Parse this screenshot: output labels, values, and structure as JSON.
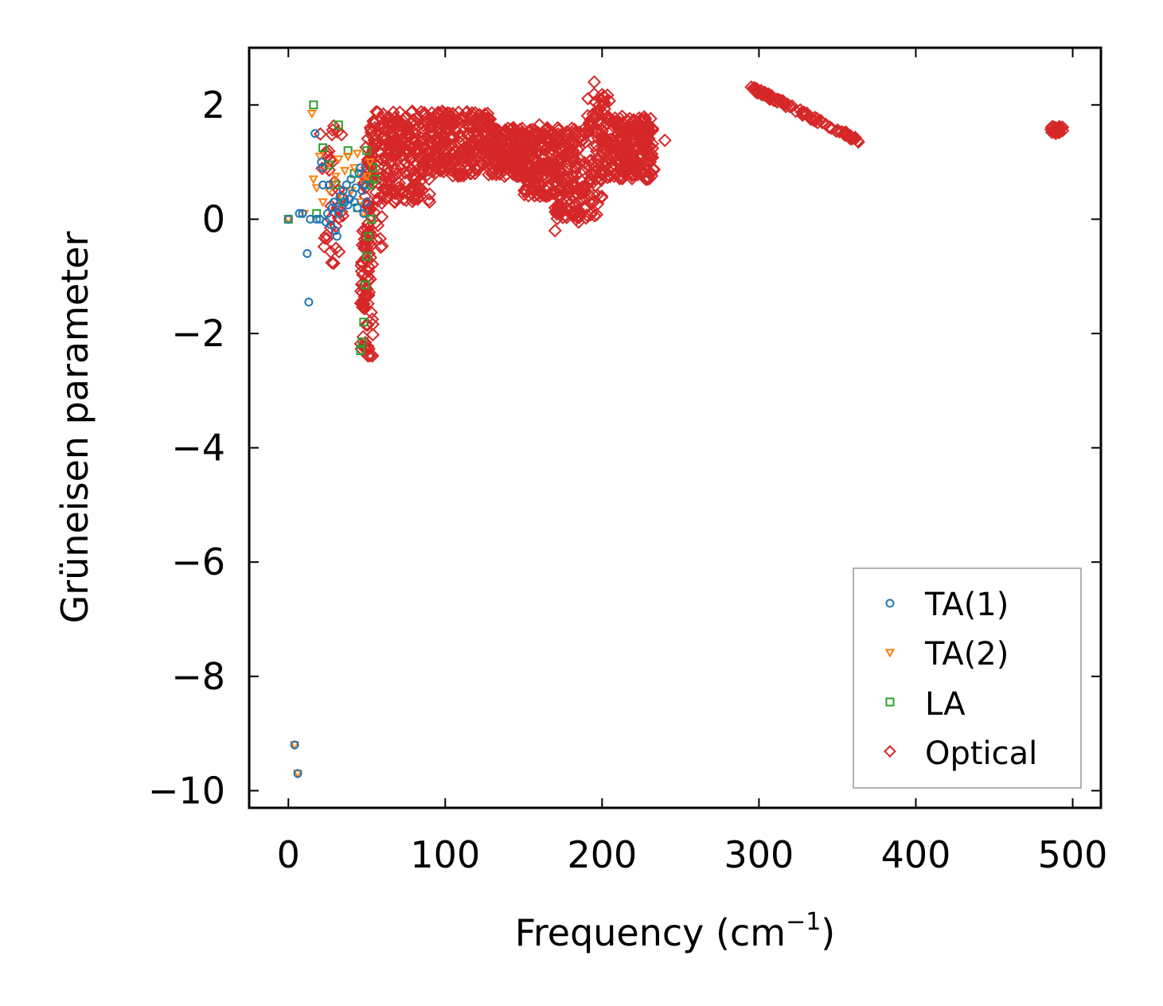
{
  "chart_data": {
    "type": "scatter",
    "title": "",
    "xlabel": "Frequency (cm",
    "xlabel_sup": "−1",
    "xlabel_close": ")",
    "ylabel": "Grüneisen parameter",
    "xlim": [
      -25,
      518
    ],
    "ylim": [
      -10.3,
      3.0
    ],
    "xticks": [
      0,
      100,
      200,
      300,
      400,
      500
    ],
    "xtick_labels": [
      "0",
      "100",
      "200",
      "300",
      "400",
      "500"
    ],
    "yticks": [
      2,
      0,
      -2,
      -4,
      -6,
      -8,
      -10
    ],
    "ytick_labels": [
      "2",
      "0",
      "−2",
      "−4",
      "−6",
      "−8",
      "−10"
    ],
    "grid": false,
    "legend_position": "bottom-right",
    "series": [
      {
        "name": "TA(1)",
        "marker": "circle",
        "color": "#1f77b4",
        "points": [
          [
            0,
            0.0
          ],
          [
            7,
            0.1
          ],
          [
            9,
            0.1
          ],
          [
            12,
            -0.6
          ],
          [
            13,
            -1.45
          ],
          [
            14,
            0.0
          ],
          [
            17,
            1.5
          ],
          [
            18,
            0.0
          ],
          [
            20,
            0.0
          ],
          [
            21,
            1.0
          ],
          [
            22,
            0.6
          ],
          [
            22,
            0.9
          ],
          [
            24,
            -0.05
          ],
          [
            25,
            0.1
          ],
          [
            26,
            0.6
          ],
          [
            27,
            -0.1
          ],
          [
            28,
            0.2
          ],
          [
            29,
            0.3
          ],
          [
            30,
            -0.2
          ],
          [
            31,
            -0.3
          ],
          [
            32,
            0.1
          ],
          [
            33,
            0.4
          ],
          [
            34,
            0.2
          ],
          [
            35,
            0.5
          ],
          [
            36,
            0.3
          ],
          [
            37,
            0.6
          ],
          [
            38,
            0.25
          ],
          [
            39,
            0.35
          ],
          [
            40,
            0.7
          ],
          [
            41,
            0.45
          ],
          [
            42,
            0.3
          ],
          [
            43,
            0.55
          ],
          [
            44,
            0.2
          ],
          [
            45,
            0.8
          ],
          [
            46,
            0.9
          ],
          [
            47,
            0.5
          ],
          [
            48,
            0.1
          ],
          [
            49,
            0.6
          ],
          [
            50,
            0.3
          ],
          [
            4,
            -9.2
          ],
          [
            6,
            -9.7
          ]
        ]
      },
      {
        "name": "TA(2)",
        "marker": "triangle-down",
        "color": "#ff7f0e",
        "points": [
          [
            0,
            0.0
          ],
          [
            10,
            0.1
          ],
          [
            15,
            1.85
          ],
          [
            16,
            0.7
          ],
          [
            18,
            0.55
          ],
          [
            20,
            1.1
          ],
          [
            22,
            0.3
          ],
          [
            24,
            0.9
          ],
          [
            26,
            0.5
          ],
          [
            28,
            0.6
          ],
          [
            30,
            0.75
          ],
          [
            32,
            1.05
          ],
          [
            34,
            0.4
          ],
          [
            36,
            0.85
          ],
          [
            38,
            1.1
          ],
          [
            40,
            0.5
          ],
          [
            42,
            0.9
          ],
          [
            44,
            1.15
          ],
          [
            46,
            0.3
          ],
          [
            47,
            0.7
          ],
          [
            48,
            0.1
          ],
          [
            50,
            0.75
          ],
          [
            52,
            1.0
          ],
          [
            4,
            -9.2
          ],
          [
            6,
            -9.7
          ]
        ]
      },
      {
        "name": "LA",
        "marker": "square",
        "color": "#2ca02c",
        "points": [
          [
            0,
            0.0
          ],
          [
            16,
            2.0
          ],
          [
            18,
            0.1
          ],
          [
            22,
            1.25
          ],
          [
            26,
            0.95
          ],
          [
            30,
            0.6
          ],
          [
            32,
            1.65
          ],
          [
            35,
            0.3
          ],
          [
            38,
            1.2
          ],
          [
            42,
            0.8
          ],
          [
            44,
            0.2
          ],
          [
            46,
            -2.3
          ],
          [
            47,
            -2.15
          ],
          [
            48,
            -1.8
          ],
          [
            49,
            -1.15
          ],
          [
            50,
            -0.65
          ],
          [
            50,
            1.2
          ],
          [
            51,
            -0.3
          ],
          [
            52,
            0.6
          ],
          [
            53,
            0.0
          ],
          [
            54,
            0.9
          ],
          [
            55,
            0.7
          ]
        ]
      },
      {
        "name": "Optical",
        "marker": "diamond",
        "color": "#d62728",
        "points": []
      }
    ]
  },
  "legend": {
    "items": [
      {
        "label": "TA(1)",
        "color": "#1f77b4",
        "marker": "circle"
      },
      {
        "label": "TA(2)",
        "color": "#ff7f0e",
        "marker": "triangle-down"
      },
      {
        "label": "LA",
        "color": "#2ca02c",
        "marker": "square"
      },
      {
        "label": "Optical",
        "color": "#d62728",
        "marker": "diamond"
      }
    ]
  }
}
